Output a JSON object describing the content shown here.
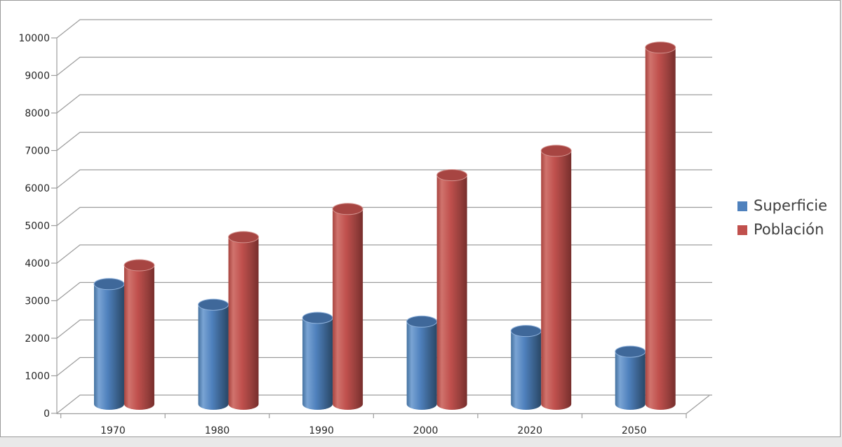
{
  "window": {
    "background": "#e9e9e9",
    "frame_border": "#9b9b9b",
    "frame_background": "#ffffff"
  },
  "chart_data": {
    "type": "bar",
    "subtype": "3d-cylinder",
    "title": "",
    "categories": [
      "1970",
      "1980",
      "1990",
      "2000",
      "2020",
      "2050"
    ],
    "series": [
      {
        "name": "Superficie",
        "color": "#4f81bd",
        "values": [
          3200,
          2650,
          2300,
          2200,
          1950,
          1400
        ],
        "shades": {
          "edge": "#44719f",
          "highlight": "#7aa4d4",
          "darkmid": "#3a618d",
          "dark": "#294766",
          "top": "#3f689a",
          "rim": "#8fb2dc"
        }
      },
      {
        "name": "Población",
        "color": "#c0504d",
        "values": [
          3700,
          4450,
          5200,
          6100,
          6750,
          9500
        ],
        "shades": {
          "edge": "#a8443f",
          "highlight": "#d0736d",
          "darkmid": "#99403d",
          "dark": "#772e2c",
          "top": "#a74542",
          "rim": "#d4928e"
        }
      }
    ],
    "ylim": [
      0,
      10000
    ],
    "ytick_interval": 1000,
    "ytick_labels": [
      "0",
      "1000",
      "2000",
      "3000",
      "4000",
      "5000",
      "6000",
      "7000",
      "8000",
      "9000",
      "10000"
    ],
    "grid": true,
    "legend_position": "right",
    "axis_text_color": "#262626",
    "gridline_color": "#9d9d9d",
    "legend_text_color": "#3f3f3f"
  }
}
